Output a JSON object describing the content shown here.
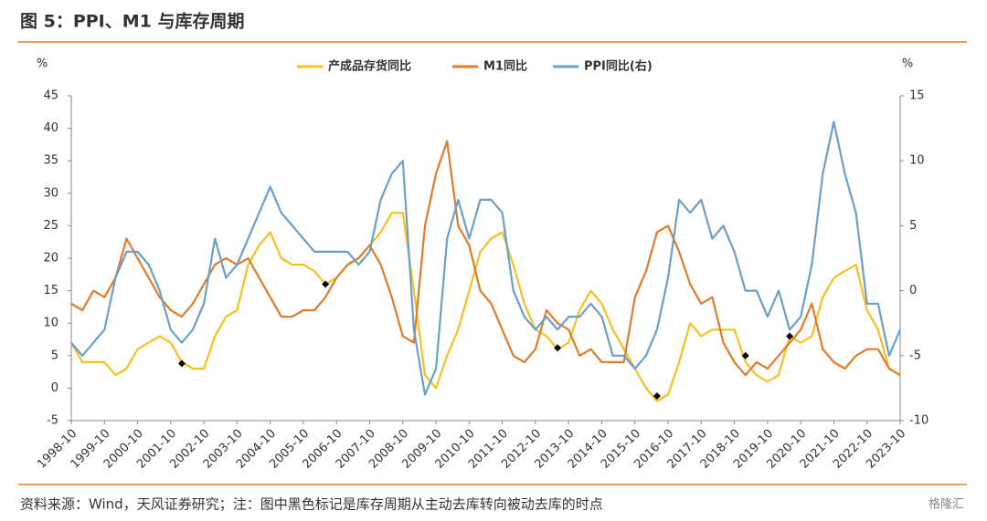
{
  "title": "图 5：PPI、M1 与库存周期",
  "source": "资料来源：Wind，天风证券研究；注：图中黑色标记是库存周期从主动去库转向被动去库的时点",
  "watermark": "格隆汇",
  "chart_data": {
    "type": "line",
    "y_unit": "%",
    "y2_unit": "%",
    "categories": [
      "1998-10",
      null,
      null,
      "1999-10",
      null,
      null,
      "2000-10",
      null,
      null,
      "2001-10",
      null,
      null,
      "2002-10",
      null,
      null,
      "2003-10",
      null,
      null,
      "2004-10",
      null,
      null,
      "2005-10",
      null,
      null,
      "2006-10",
      null,
      null,
      "2007-10",
      null,
      null,
      "2008-10",
      null,
      null,
      "2009-10",
      null,
      null,
      "2010-10",
      null,
      null,
      "2011-10",
      null,
      null,
      "2012-10",
      null,
      null,
      "2013-10",
      null,
      null,
      "2014-10",
      null,
      null,
      "2015-10",
      null,
      null,
      "2016-10",
      null,
      null,
      "2017-10",
      null,
      null,
      "2018-10",
      null,
      null,
      "2019-10",
      null,
      null,
      "2020-10",
      null,
      null,
      "2021-10",
      null,
      null,
      "2022-10",
      null,
      null,
      "2023-10"
    ],
    "series": [
      {
        "name": "产成品存货同比",
        "color": "#f5c022",
        "values": [
          7,
          4,
          4,
          4,
          2,
          3,
          6,
          7,
          8,
          7,
          4,
          3,
          3,
          8,
          11,
          12,
          19,
          22,
          24,
          20,
          19,
          19,
          18,
          16,
          17,
          19,
          20,
          22,
          24,
          27,
          27,
          15,
          2,
          0,
          5,
          9,
          15,
          21,
          23,
          24,
          19,
          13,
          9,
          8,
          6,
          7,
          12,
          15,
          13,
          9,
          6,
          3,
          0,
          -2,
          -1,
          4,
          10,
          8,
          9,
          9,
          9,
          4,
          2,
          1,
          2,
          8,
          7,
          8,
          14,
          17,
          18,
          19,
          12,
          9,
          3,
          2
        ]
      },
      {
        "name": "M1同比",
        "color": "#e07b2a",
        "values": [
          13,
          12,
          15,
          14,
          17,
          23,
          20,
          17,
          14,
          12,
          11,
          13,
          16,
          19,
          20,
          19,
          20,
          17,
          14,
          11,
          11,
          12,
          12,
          14,
          17,
          19,
          20,
          22,
          19,
          14,
          8,
          7,
          25,
          33,
          38,
          25,
          22,
          15,
          13,
          9,
          5,
          4,
          6,
          12,
          10,
          9,
          5,
          6,
          4,
          4,
          4,
          14,
          18,
          24,
          25,
          21,
          16,
          13,
          14,
          7,
          4,
          2,
          4,
          3,
          5,
          7,
          9,
          13,
          6,
          4,
          3,
          5,
          6,
          6,
          3,
          2
        ]
      },
      {
        "name": "PPI同比(右)",
        "color": "#6a9fc9",
        "axis": "y2",
        "values": [
          -4,
          -5,
          -4,
          -3,
          1,
          3,
          3,
          2,
          0,
          -3,
          -4,
          -3,
          -1,
          4,
          1,
          2,
          4,
          6,
          8,
          6,
          5,
          4,
          3,
          3,
          3,
          3,
          2,
          3,
          7,
          9,
          10,
          -3,
          -8,
          -6,
          4,
          7,
          4,
          7,
          7,
          6,
          0,
          -2,
          -3,
          -2,
          -3,
          -2,
          -2,
          -1,
          -2,
          -5,
          -5,
          -6,
          -5,
          -3,
          1,
          7,
          6,
          7,
          4,
          5,
          3,
          0,
          0,
          -2,
          0,
          -3,
          -2,
          2,
          9,
          13,
          9,
          6,
          -1,
          -1,
          -5,
          -3
        ]
      }
    ],
    "markers": [
      null,
      null,
      null,
      null,
      null,
      null,
      null,
      null,
      null,
      null,
      3.8,
      null,
      null,
      null,
      null,
      null,
      null,
      null,
      null,
      null,
      null,
      null,
      null,
      16,
      null,
      null,
      null,
      null,
      null,
      null,
      null,
      null,
      null,
      null,
      null,
      null,
      null,
      null,
      null,
      null,
      null,
      null,
      null,
      null,
      6.2,
      null,
      null,
      null,
      null,
      null,
      null,
      null,
      null,
      -1.2,
      null,
      null,
      null,
      null,
      null,
      null,
      null,
      5,
      null,
      null,
      null,
      8,
      null,
      null,
      null,
      null,
      null,
      null,
      null,
      null,
      null,
      null
    ],
    "ylim": [
      -5,
      45
    ],
    "yticks": [
      -5,
      0,
      5,
      10,
      15,
      20,
      25,
      30,
      35,
      40,
      45
    ],
    "y2lim": [
      -10,
      15
    ],
    "y2ticks": [
      -10,
      -5,
      0,
      5,
      10,
      15
    ],
    "grid": false,
    "legend": "top"
  }
}
